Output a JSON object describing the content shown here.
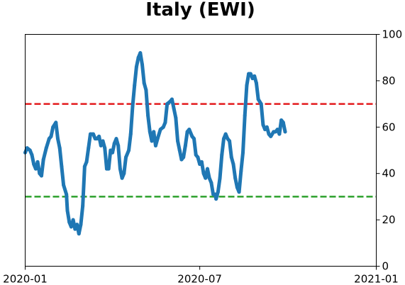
{
  "chart_data": {
    "type": "line",
    "title": "Italy (EWI)",
    "xlabel": "",
    "ylabel": "",
    "x_range": [
      "2020-01-01",
      "2021-01-01"
    ],
    "ylim": [
      0,
      100
    ],
    "y_axis_side": "right",
    "grid": false,
    "x_ticks": [
      {
        "date": "2020-01-01",
        "label": "2020-01"
      },
      {
        "date": "2020-07-01",
        "label": "2020-07"
      },
      {
        "date": "2021-01-01",
        "label": "2021-01"
      }
    ],
    "y_ticks": [
      0,
      20,
      40,
      60,
      80,
      100
    ],
    "reference_lines": [
      {
        "y": 70,
        "color": "#e31a1c",
        "style": "dashed"
      },
      {
        "y": 30,
        "color": "#2ca02c",
        "style": "dashed"
      }
    ],
    "series": [
      {
        "color": "#1f77b4",
        "points": [
          [
            "2020-01-01",
            49
          ],
          [
            "2020-01-03",
            51
          ],
          [
            "2020-01-06",
            50
          ],
          [
            "2020-01-08",
            48
          ],
          [
            "2020-01-10",
            44
          ],
          [
            "2020-01-12",
            42
          ],
          [
            "2020-01-14",
            45
          ],
          [
            "2020-01-16",
            40
          ],
          [
            "2020-01-18",
            39
          ],
          [
            "2020-01-20",
            46
          ],
          [
            "2020-01-23",
            51
          ],
          [
            "2020-01-26",
            55
          ],
          [
            "2020-01-28",
            56
          ],
          [
            "2020-01-30",
            60
          ],
          [
            "2020-02-02",
            62
          ],
          [
            "2020-02-04",
            55
          ],
          [
            "2020-02-06",
            51
          ],
          [
            "2020-02-08",
            43
          ],
          [
            "2020-02-10",
            35
          ],
          [
            "2020-02-13",
            31
          ],
          [
            "2020-02-14",
            24
          ],
          [
            "2020-02-16",
            19
          ],
          [
            "2020-02-18",
            17
          ],
          [
            "2020-02-20",
            20
          ],
          [
            "2020-02-22",
            16
          ],
          [
            "2020-02-24",
            18
          ],
          [
            "2020-02-26",
            14
          ],
          [
            "2020-02-28",
            18
          ],
          [
            "2020-03-01",
            26
          ],
          [
            "2020-03-03",
            43
          ],
          [
            "2020-03-05",
            45
          ],
          [
            "2020-03-07",
            51
          ],
          [
            "2020-03-09",
            57
          ],
          [
            "2020-03-12",
            57
          ],
          [
            "2020-03-14",
            55
          ],
          [
            "2020-03-16",
            55
          ],
          [
            "2020-03-18",
            56
          ],
          [
            "2020-03-20",
            52
          ],
          [
            "2020-03-22",
            54
          ],
          [
            "2020-03-24",
            51
          ],
          [
            "2020-03-26",
            42
          ],
          [
            "2020-03-28",
            42
          ],
          [
            "2020-03-30",
            50
          ],
          [
            "2020-04-01",
            49
          ],
          [
            "2020-04-03",
            53
          ],
          [
            "2020-04-05",
            55
          ],
          [
            "2020-04-07",
            52
          ],
          [
            "2020-04-09",
            42
          ],
          [
            "2020-04-11",
            38
          ],
          [
            "2020-04-13",
            40
          ],
          [
            "2020-04-15",
            47
          ],
          [
            "2020-04-18",
            50
          ],
          [
            "2020-04-20",
            57
          ],
          [
            "2020-04-22",
            69
          ],
          [
            "2020-04-24",
            78
          ],
          [
            "2020-04-26",
            86
          ],
          [
            "2020-04-28",
            90
          ],
          [
            "2020-04-30",
            92
          ],
          [
            "2020-05-02",
            87
          ],
          [
            "2020-05-04",
            79
          ],
          [
            "2020-05-06",
            76
          ],
          [
            "2020-05-08",
            65
          ],
          [
            "2020-05-10",
            58
          ],
          [
            "2020-05-12",
            54
          ],
          [
            "2020-05-14",
            58
          ],
          [
            "2020-05-16",
            52
          ],
          [
            "2020-05-18",
            55
          ],
          [
            "2020-05-21",
            59
          ],
          [
            "2020-05-24",
            60
          ],
          [
            "2020-05-26",
            62
          ],
          [
            "2020-05-28",
            70
          ],
          [
            "2020-05-31",
            71
          ],
          [
            "2020-06-02",
            72
          ],
          [
            "2020-06-04",
            68
          ],
          [
            "2020-06-06",
            64
          ],
          [
            "2020-06-08",
            54
          ],
          [
            "2020-06-10",
            50
          ],
          [
            "2020-06-12",
            46
          ],
          [
            "2020-06-14",
            47
          ],
          [
            "2020-06-16",
            52
          ],
          [
            "2020-06-18",
            58
          ],
          [
            "2020-06-20",
            59
          ],
          [
            "2020-06-23",
            56
          ],
          [
            "2020-06-25",
            55
          ],
          [
            "2020-06-27",
            48
          ],
          [
            "2020-06-29",
            47
          ],
          [
            "2020-07-01",
            44
          ],
          [
            "2020-07-03",
            45
          ],
          [
            "2020-07-05",
            40
          ],
          [
            "2020-07-07",
            38
          ],
          [
            "2020-07-09",
            42
          ],
          [
            "2020-07-11",
            38
          ],
          [
            "2020-07-13",
            36
          ],
          [
            "2020-07-15",
            31
          ],
          [
            "2020-07-17",
            31
          ],
          [
            "2020-07-18",
            29
          ],
          [
            "2020-07-20",
            32
          ],
          [
            "2020-07-22",
            38
          ],
          [
            "2020-07-24",
            48
          ],
          [
            "2020-07-26",
            55
          ],
          [
            "2020-07-28",
            57
          ],
          [
            "2020-07-30",
            55
          ],
          [
            "2020-08-01",
            54
          ],
          [
            "2020-08-03",
            47
          ],
          [
            "2020-08-05",
            44
          ],
          [
            "2020-08-07",
            38
          ],
          [
            "2020-08-09",
            34
          ],
          [
            "2020-08-11",
            32
          ],
          [
            "2020-08-13",
            41
          ],
          [
            "2020-08-15",
            49
          ],
          [
            "2020-08-17",
            65
          ],
          [
            "2020-08-19",
            78
          ],
          [
            "2020-08-21",
            83
          ],
          [
            "2020-08-23",
            83
          ],
          [
            "2020-08-25",
            81
          ],
          [
            "2020-08-27",
            82
          ],
          [
            "2020-08-29",
            79
          ],
          [
            "2020-08-31",
            72
          ],
          [
            "2020-09-03",
            70
          ],
          [
            "2020-09-05",
            61
          ],
          [
            "2020-09-07",
            59
          ],
          [
            "2020-09-09",
            60
          ],
          [
            "2020-09-11",
            57
          ],
          [
            "2020-09-13",
            56
          ],
          [
            "2020-09-16",
            58
          ],
          [
            "2020-09-18",
            58
          ],
          [
            "2020-09-20",
            59
          ],
          [
            "2020-09-22",
            57
          ],
          [
            "2020-09-24",
            63
          ],
          [
            "2020-09-26",
            62
          ],
          [
            "2020-09-28",
            58
          ]
        ]
      }
    ]
  }
}
